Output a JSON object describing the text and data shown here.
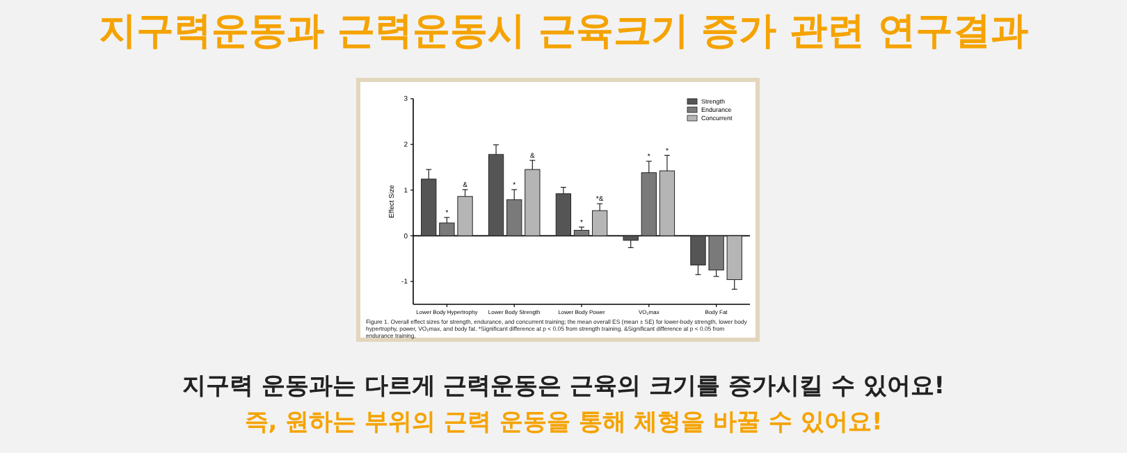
{
  "chart_data": {
    "type": "bar",
    "title": "지구력운동과 근력운동시 근육크기 증가 관련 연구결과",
    "ylabel": "Effect Size",
    "categories": [
      "Lower Body Hypertrophy",
      "Lower Body Strength",
      "Lower Body Power",
      "VO₂max",
      "Body Fat"
    ],
    "series": [
      {
        "name": "Strength",
        "color": "#555555",
        "values": [
          1.24,
          1.78,
          0.92,
          -0.1,
          -0.64
        ],
        "errors": [
          0.21,
          0.21,
          0.14,
          0.16,
          0.21
        ]
      },
      {
        "name": "Endurance",
        "color": "#7a7a7a",
        "values": [
          0.28,
          0.79,
          0.12,
          1.38,
          -0.75
        ],
        "errors": [
          0.12,
          0.22,
          0.07,
          0.25,
          0.14
        ],
        "value_labels": [
          "*",
          "*",
          "*",
          "*",
          null
        ]
      },
      {
        "name": "Concurrent",
        "color": "#b5b5b5",
        "values": [
          0.86,
          1.45,
          0.55,
          1.42,
          -0.96
        ],
        "errors": [
          0.15,
          0.2,
          0.15,
          0.34,
          0.21
        ],
        "value_labels": [
          "&",
          "&",
          "*&",
          "*",
          null
        ]
      }
    ],
    "ref_lines": [
      {
        "axis": "y",
        "value": 0
      }
    ],
    "ylim": [
      -1.5,
      3
    ],
    "yticks": [
      -1,
      0,
      1,
      2,
      3
    ],
    "grid": false,
    "legend": "top right",
    "annotations": [
      "Figure 1. Overall effect sizes for strength, endurance, and concurrent training; the mean overall ES (mean ± SE) for lower-body strength, lower body hypertrophy, power, VO₂max, and body fat. *Significant difference at p < 0.05 from strength training. &Significant difference at p < 0.05 from endurance training.",
      "지구력 운동과는 다르게 근력운동은 근육의 크기를 증가시킬 수 있어요!",
      "즉, 원하는 부위의 근력 운동을 통해 체형을 바꿀 수 있어요!"
    ]
  }
}
